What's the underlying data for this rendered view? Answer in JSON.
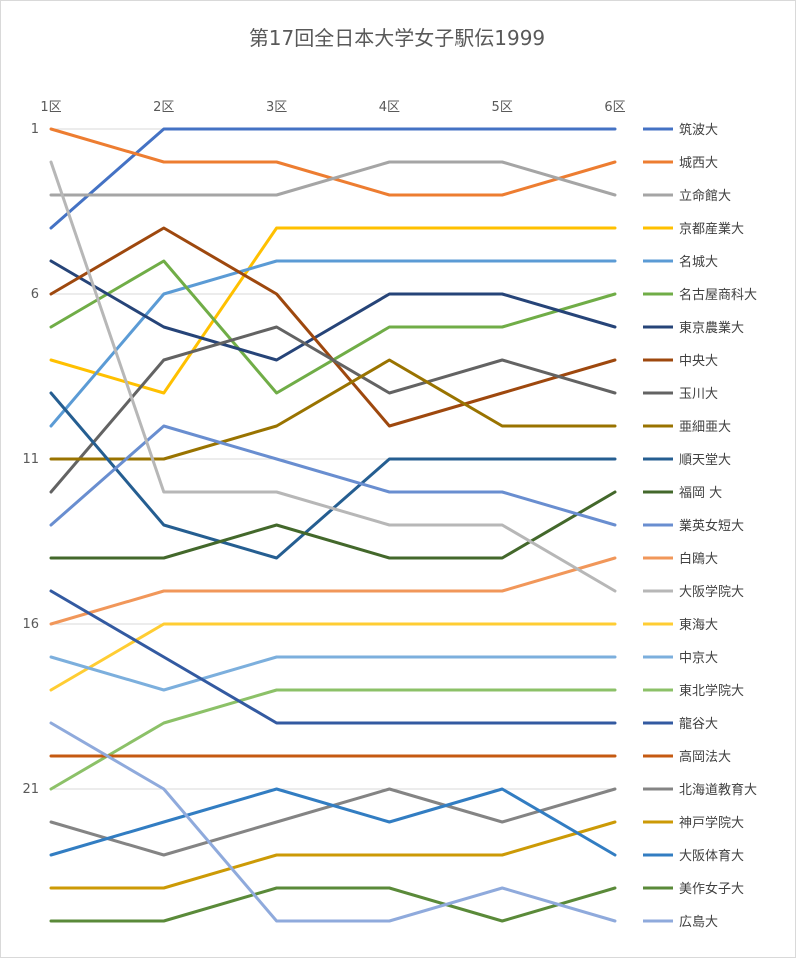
{
  "chart_data": {
    "type": "line",
    "title": "第17回全日本大学女子駅伝1999",
    "xlabel": "",
    "ylabel": "",
    "categories": [
      "1区",
      "2区",
      "3区",
      "4区",
      "5区",
      "6区"
    ],
    "y_reversed": true,
    "ylim": [
      1,
      25
    ],
    "y_ticks": [
      "1",
      "6",
      "11",
      "16",
      "21"
    ],
    "grid": true,
    "legend_position": "right",
    "series": [
      {
        "name": "筑波大",
        "color": "#4472C4",
        "values": [
          4,
          1,
          1,
          1,
          1,
          1
        ]
      },
      {
        "name": "城西大",
        "color": "#ED7D31",
        "values": [
          1,
          2,
          2,
          3,
          3,
          2
        ]
      },
      {
        "name": "立命館大",
        "color": "#A5A5A5",
        "values": [
          3,
          3,
          3,
          2,
          2,
          3
        ]
      },
      {
        "name": "京都産業大",
        "color": "#FFC000",
        "values": [
          8,
          9,
          4,
          4,
          4,
          4
        ]
      },
      {
        "name": "名城大",
        "color": "#5B9BD5",
        "values": [
          10,
          6,
          5,
          5,
          5,
          5
        ]
      },
      {
        "name": "名古屋商科大",
        "color": "#70AD47",
        "values": [
          7,
          5,
          9,
          7,
          7,
          6
        ]
      },
      {
        "name": "東京農業大",
        "color": "#264478",
        "values": [
          5,
          7,
          8,
          6,
          6,
          7
        ]
      },
      {
        "name": "中央大",
        "color": "#9E480E",
        "values": [
          6,
          4,
          6,
          10,
          9,
          8
        ]
      },
      {
        "name": "玉川大",
        "color": "#636363",
        "values": [
          12,
          8,
          7,
          9,
          8,
          9
        ]
      },
      {
        "name": "亜細亜大",
        "color": "#997300",
        "values": [
          11,
          11,
          10,
          8,
          10,
          10
        ]
      },
      {
        "name": "順天堂大",
        "color": "#255E91",
        "values": [
          9,
          13,
          14,
          11,
          11,
          11
        ]
      },
      {
        "name": "福岡 大",
        "color": "#43682B",
        "values": [
          14,
          14,
          13,
          14,
          14,
          12
        ]
      },
      {
        "name": "業英女短大",
        "color": "#698ED0",
        "values": [
          13,
          10,
          11,
          12,
          12,
          13
        ]
      },
      {
        "name": "白鴎大",
        "color": "#F1975A",
        "values": [
          16,
          15,
          15,
          15,
          15,
          14
        ]
      },
      {
        "name": "大阪学院大",
        "color": "#B7B7B7",
        "values": [
          2,
          12,
          12,
          13,
          13,
          15
        ]
      },
      {
        "name": "東海大",
        "color": "#FFCD33",
        "values": [
          18,
          16,
          16,
          16,
          16,
          16
        ]
      },
      {
        "name": "中京大",
        "color": "#7CAFDD",
        "values": [
          17,
          18,
          17,
          17,
          17,
          17
        ]
      },
      {
        "name": "東北学院大",
        "color": "#8CC168",
        "values": [
          21,
          19,
          18,
          18,
          18,
          18
        ]
      },
      {
        "name": "龍谷大",
        "color": "#335AA1",
        "values": [
          15,
          17,
          19,
          19,
          19,
          19
        ]
      },
      {
        "name": "高岡法大",
        "color": "#C55A11",
        "values": [
          20,
          20,
          20,
          20,
          20,
          20
        ]
      },
      {
        "name": "北海道教育大",
        "color": "#848484",
        "values": [
          22,
          23,
          22,
          21,
          22,
          21
        ]
      },
      {
        "name": "神戸学院大",
        "color": "#CC9A06",
        "values": [
          24,
          24,
          23,
          23,
          23,
          22
        ]
      },
      {
        "name": "大阪体育大",
        "color": "#327DC2",
        "values": [
          23,
          22,
          21,
          22,
          21,
          23
        ]
      },
      {
        "name": "美作女子大",
        "color": "#5A8A39",
        "values": [
          25,
          25,
          24,
          24,
          25,
          24
        ]
      },
      {
        "name": "広島大",
        "color": "#8FAADC",
        "values": [
          19,
          21,
          25,
          25,
          24,
          25
        ]
      }
    ]
  }
}
